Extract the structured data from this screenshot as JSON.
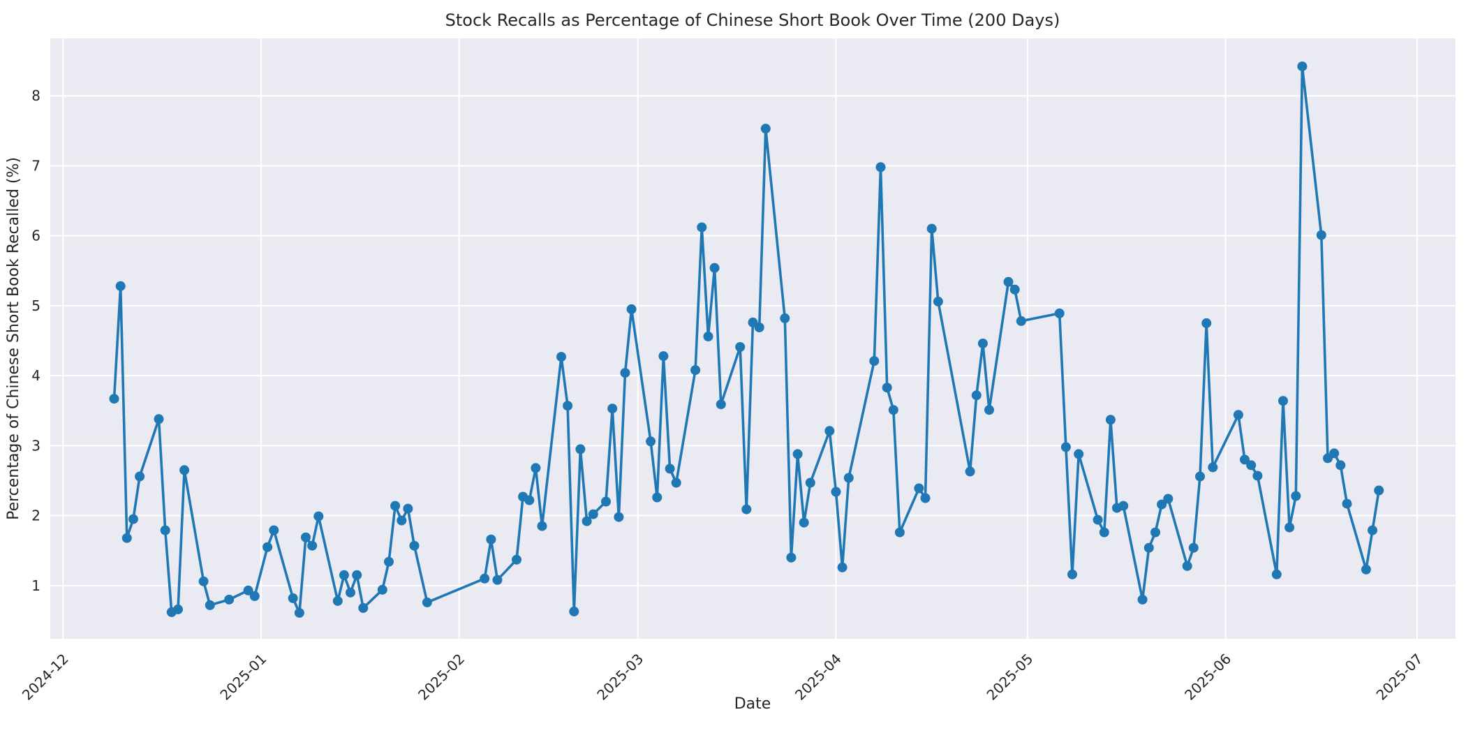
{
  "chart_data": {
    "type": "line",
    "title": "Stock Recalls as Percentage of Chinese Short Book Over Time (200 Days)",
    "xlabel": "Date",
    "ylabel": "Percentage of Chinese Short Book Recalled (%)",
    "legend_position": "none",
    "grid": "on",
    "marker": "circle",
    "line_color": "#1f77b4",
    "plot_bg_color": "#eaeaf2",
    "grid_color": "#ffffff",
    "text_color": "#262626",
    "figure_bg_color": "#ffffff",
    "xlim": [
      "2024-11-29",
      "2025-07-07"
    ],
    "ylim": [
      0.24,
      8.82
    ],
    "y_ticks": [
      1,
      2,
      3,
      4,
      5,
      6,
      7,
      8
    ],
    "x_ticks": [
      {
        "date": "2024-12-01",
        "label": "2024-12"
      },
      {
        "date": "2025-01-01",
        "label": "2025-01"
      },
      {
        "date": "2025-02-01",
        "label": "2025-02"
      },
      {
        "date": "2025-03-01",
        "label": "2025-03"
      },
      {
        "date": "2025-04-01",
        "label": "2025-04"
      },
      {
        "date": "2025-05-01",
        "label": "2025-05"
      },
      {
        "date": "2025-06-01",
        "label": "2025-06"
      },
      {
        "date": "2025-07-01",
        "label": "2025-07"
      }
    ],
    "dates": [
      "2024-12-09",
      "2024-12-10",
      "2024-12-11",
      "2024-12-12",
      "2024-12-13",
      "2024-12-16",
      "2024-12-17",
      "2024-12-18",
      "2024-12-19",
      "2024-12-20",
      "2024-12-23",
      "2024-12-24",
      "2024-12-27",
      "2024-12-30",
      "2024-12-31",
      "2025-01-02",
      "2025-01-03",
      "2025-01-06",
      "2025-01-07",
      "2025-01-08",
      "2025-01-09",
      "2025-01-10",
      "2025-01-13",
      "2025-01-14",
      "2025-01-15",
      "2025-01-16",
      "2025-01-17",
      "2025-01-20",
      "2025-01-21",
      "2025-01-22",
      "2025-01-23",
      "2025-01-24",
      "2025-01-25",
      "2025-01-27",
      "2025-02-05",
      "2025-02-06",
      "2025-02-07",
      "2025-02-10",
      "2025-02-11",
      "2025-02-12",
      "2025-02-13",
      "2025-02-14",
      "2025-02-17",
      "2025-02-18",
      "2025-02-19",
      "2025-02-20",
      "2025-02-21",
      "2025-02-22",
      "2025-02-24",
      "2025-02-25",
      "2025-02-26",
      "2025-02-27",
      "2025-02-28",
      "2025-03-03",
      "2025-03-04",
      "2025-03-05",
      "2025-03-06",
      "2025-03-07",
      "2025-03-10",
      "2025-03-11",
      "2025-03-12",
      "2025-03-13",
      "2025-03-14",
      "2025-03-17",
      "2025-03-18",
      "2025-03-19",
      "2025-03-20",
      "2025-03-21",
      "2025-03-24",
      "2025-03-25",
      "2025-03-26",
      "2025-03-27",
      "2025-03-28",
      "2025-03-31",
      "2025-04-01",
      "2025-04-02",
      "2025-04-03",
      "2025-04-07",
      "2025-04-08",
      "2025-04-09",
      "2025-04-10",
      "2025-04-11",
      "2025-04-14",
      "2025-04-15",
      "2025-04-16",
      "2025-04-17",
      "2025-04-22",
      "2025-04-23",
      "2025-04-24",
      "2025-04-25",
      "2025-04-28",
      "2025-04-29",
      "2025-04-30",
      "2025-05-06",
      "2025-05-07",
      "2025-05-08",
      "2025-05-09",
      "2025-05-12",
      "2025-05-13",
      "2025-05-14",
      "2025-05-15",
      "2025-05-16",
      "2025-05-19",
      "2025-05-20",
      "2025-05-21",
      "2025-05-22",
      "2025-05-23",
      "2025-05-26",
      "2025-05-27",
      "2025-05-28",
      "2025-05-29",
      "2025-05-30",
      "2025-06-03",
      "2025-06-04",
      "2025-06-05",
      "2025-06-06",
      "2025-06-09",
      "2025-06-10",
      "2025-06-11",
      "2025-06-12",
      "2025-06-13",
      "2025-06-16",
      "2025-06-17",
      "2025-06-18",
      "2025-06-19",
      "2025-06-20",
      "2025-06-23",
      "2025-06-24",
      "2025-06-25"
    ],
    "values": [
      3.67,
      5.28,
      1.68,
      1.95,
      2.56,
      3.38,
      1.79,
      0.62,
      0.66,
      2.65,
      1.06,
      0.72,
      0.8,
      0.93,
      0.85,
      1.55,
      1.79,
      0.82,
      0.61,
      1.69,
      1.57,
      1.99,
      0.78,
      1.15,
      0.9,
      1.15,
      0.68,
      0.94,
      1.34,
      2.14,
      1.93,
      2.1,
      1.57,
      0.76,
      1.1,
      1.66,
      1.08,
      1.37,
      2.27,
      2.22,
      2.68,
      1.85,
      4.27,
      3.57,
      0.63,
      2.95,
      1.92,
      2.02,
      2.2,
      3.53,
      1.98,
      4.04,
      4.95,
      3.06,
      2.26,
      4.28,
      2.67,
      2.47,
      4.08,
      6.12,
      4.56,
      5.54,
      3.59,
      4.41,
      2.09,
      4.76,
      4.69,
      7.53,
      4.82,
      1.4,
      2.88,
      1.9,
      2.47,
      3.21,
      2.34,
      1.26,
      2.54,
      4.21,
      6.98,
      3.83,
      3.51,
      1.76,
      2.39,
      2.25,
      6.1,
      5.06,
      2.63,
      3.72,
      4.46,
      3.51,
      5.34,
      5.23,
      4.78,
      4.89,
      2.98,
      1.16,
      2.88,
      1.94,
      1.76,
      3.37,
      2.11,
      2.14,
      0.8,
      1.54,
      1.76,
      2.16,
      2.24,
      1.28,
      1.54,
      2.56,
      4.75,
      2.69,
      3.44,
      2.8,
      2.72,
      2.57,
      1.16,
      3.64,
      1.83,
      2.28,
      8.42,
      6.01,
      2.82,
      2.89,
      2.72,
      2.17,
      1.23,
      1.79,
      2.36
    ]
  }
}
